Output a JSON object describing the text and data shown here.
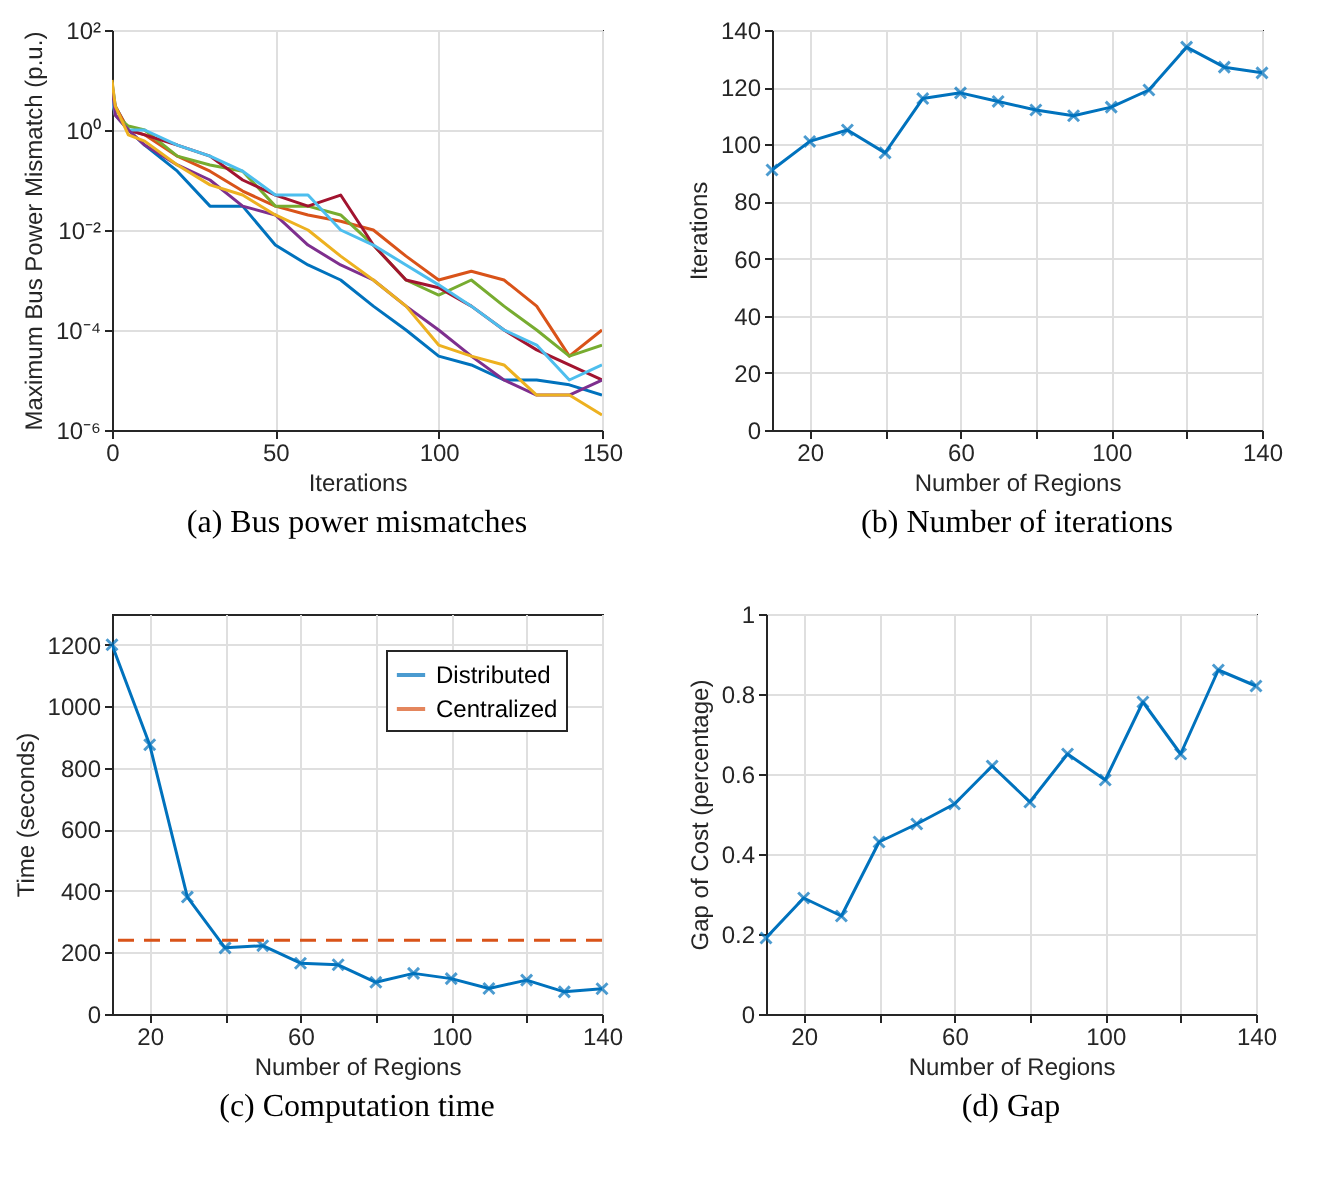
{
  "chart_data": [
    {
      "type": "line",
      "title": "(a) Bus power mismatches",
      "xlabel": "Iterations",
      "ylabel": "Maximum Bus Power Mismatch (p.u.)",
      "log": "y",
      "grid": true,
      "marker": "none",
      "line_style": "solid",
      "xlim": [
        0,
        150
      ],
      "xticks": [
        0,
        50,
        100,
        150
      ],
      "ylim": [
        1e-06,
        100
      ],
      "yticks": [
        {
          "value": 1e-06,
          "label": "10⁻⁶"
        },
        {
          "value": 0.0001,
          "label": "10⁻⁴"
        },
        {
          "value": 0.01,
          "label": "10⁻²"
        },
        {
          "value": 1,
          "label": "10⁰"
        },
        {
          "value": 100,
          "label": "10²"
        }
      ],
      "x": [
        0,
        1,
        5,
        10,
        20,
        30,
        40,
        50,
        60,
        70,
        80,
        90,
        100,
        110,
        120,
        130,
        140,
        150
      ],
      "series": [
        {
          "color": "#0072bd",
          "values": [
            9,
            3,
            1,
            0.5,
            0.15,
            0.03,
            0.03,
            0.005,
            0.002,
            0.001,
            0.0003,
            0.0001,
            3e-05,
            2e-05,
            1e-05,
            1e-05,
            8e-06,
            5e-06
          ]
        },
        {
          "color": "#d95319",
          "values": [
            6,
            3,
            1,
            0.8,
            0.3,
            0.15,
            0.06,
            0.03,
            0.02,
            0.015,
            0.01,
            0.003,
            0.001,
            0.0015,
            0.001,
            0.0003,
            3e-05,
            0.0001
          ]
        },
        {
          "color": "#77ac30",
          "values": [
            5,
            2,
            1.2,
            1,
            0.3,
            0.2,
            0.15,
            0.03,
            0.03,
            0.02,
            0.005,
            0.001,
            0.0005,
            0.001,
            0.0003,
            0.0001,
            3e-05,
            5e-05
          ]
        },
        {
          "color": "#a2142f",
          "values": [
            7,
            2,
            1,
            0.8,
            0.5,
            0.3,
            0.1,
            0.05,
            0.03,
            0.05,
            0.005,
            0.001,
            0.0007,
            0.0003,
            0.0001,
            4e-05,
            2e-05,
            1e-05
          ]
        },
        {
          "color": "#4dbeee",
          "values": [
            4,
            2,
            1,
            1,
            0.5,
            0.3,
            0.15,
            0.05,
            0.05,
            0.01,
            0.005,
            0.002,
            0.0008,
            0.0003,
            0.0001,
            5e-05,
            1e-05,
            2e-05
          ]
        },
        {
          "color": "#7e2f8e",
          "values": [
            8,
            2,
            1,
            0.5,
            0.2,
            0.1,
            0.03,
            0.02,
            0.005,
            0.002,
            0.001,
            0.0003,
            0.0001,
            3e-05,
            1e-05,
            5e-06,
            5e-06,
            1e-05
          ]
        },
        {
          "color": "#edb120",
          "values": [
            10,
            3,
            0.8,
            0.6,
            0.2,
            0.08,
            0.05,
            0.02,
            0.01,
            0.003,
            0.001,
            0.0003,
            5e-05,
            3e-05,
            2e-05,
            5e-06,
            5e-06,
            2e-06
          ]
        }
      ]
    },
    {
      "type": "line",
      "title": "(b) Number of iterations",
      "xlabel": "Number of Regions",
      "ylabel": "Iterations",
      "grid": true,
      "marker": "cross",
      "line_style": "solid",
      "xlim": [
        10,
        140
      ],
      "xticks": [
        20,
        {
          "value": 40,
          "label": null
        },
        60,
        {
          "value": 80,
          "label": null
        },
        100,
        {
          "value": 120,
          "label": null
        },
        140
      ],
      "ylim": [
        0,
        140
      ],
      "yticks": [
        0,
        20,
        40,
        60,
        80,
        100,
        120,
        140
      ],
      "x": [
        10,
        20,
        30,
        40,
        50,
        60,
        70,
        80,
        90,
        100,
        110,
        120,
        130,
        140
      ],
      "series": [
        {
          "color": "#0072bd",
          "values": [
            91,
            101,
            105,
            97,
            116,
            118,
            115,
            112,
            110,
            113,
            119,
            134,
            127,
            125
          ]
        }
      ]
    },
    {
      "type": "line",
      "title": "(c) Computation time",
      "xlabel": "Number of Regions",
      "ylabel": "Time (seconds)",
      "grid": true,
      "marker": "cross",
      "line_style": "solid",
      "legend": "top right",
      "xlim": [
        10,
        140
      ],
      "xticks": [
        20,
        {
          "value": 40,
          "label": null
        },
        60,
        {
          "value": 80,
          "label": null
        },
        100,
        {
          "value": 120,
          "label": null
        },
        140
      ],
      "ylim": [
        0,
        1300
      ],
      "yticks": [
        0,
        200,
        400,
        600,
        800,
        1000,
        1200
      ],
      "x": [
        10,
        20,
        30,
        40,
        50,
        60,
        70,
        80,
        90,
        100,
        110,
        120,
        130,
        140
      ],
      "series": [
        {
          "name": "Distributed",
          "color": "#0072bd",
          "values": [
            1200,
            875,
            380,
            215,
            222,
            165,
            160,
            103,
            132,
            115,
            83,
            110,
            72,
            82
          ]
        }
      ],
      "ref_lines": [
        {
          "axis": "y",
          "value": 240,
          "label": "Centralized",
          "color": "#d95319",
          "line_style": "dashed"
        }
      ]
    },
    {
      "type": "line",
      "title": "(d) Gap",
      "xlabel": "Number of Regions",
      "ylabel": "Gap of Cost (percentage)",
      "grid": true,
      "marker": "cross",
      "line_style": "solid",
      "xlim": [
        10,
        140
      ],
      "xticks": [
        20,
        {
          "value": 40,
          "label": null
        },
        60,
        {
          "value": 80,
          "label": null
        },
        100,
        {
          "value": 120,
          "label": null
        },
        140
      ],
      "ylim": [
        0,
        1
      ],
      "yticks": [
        0,
        0.2,
        0.4,
        0.6,
        0.8,
        1
      ],
      "x": [
        10,
        20,
        30,
        40,
        50,
        60,
        70,
        80,
        90,
        100,
        110,
        120,
        130,
        140
      ],
      "series": [
        {
          "color": "#0072bd",
          "values": [
            0.19,
            0.29,
            0.245,
            0.43,
            0.475,
            0.525,
            0.62,
            0.53,
            0.65,
            0.585,
            0.78,
            0.65,
            0.86,
            0.82
          ]
        }
      ]
    }
  ]
}
